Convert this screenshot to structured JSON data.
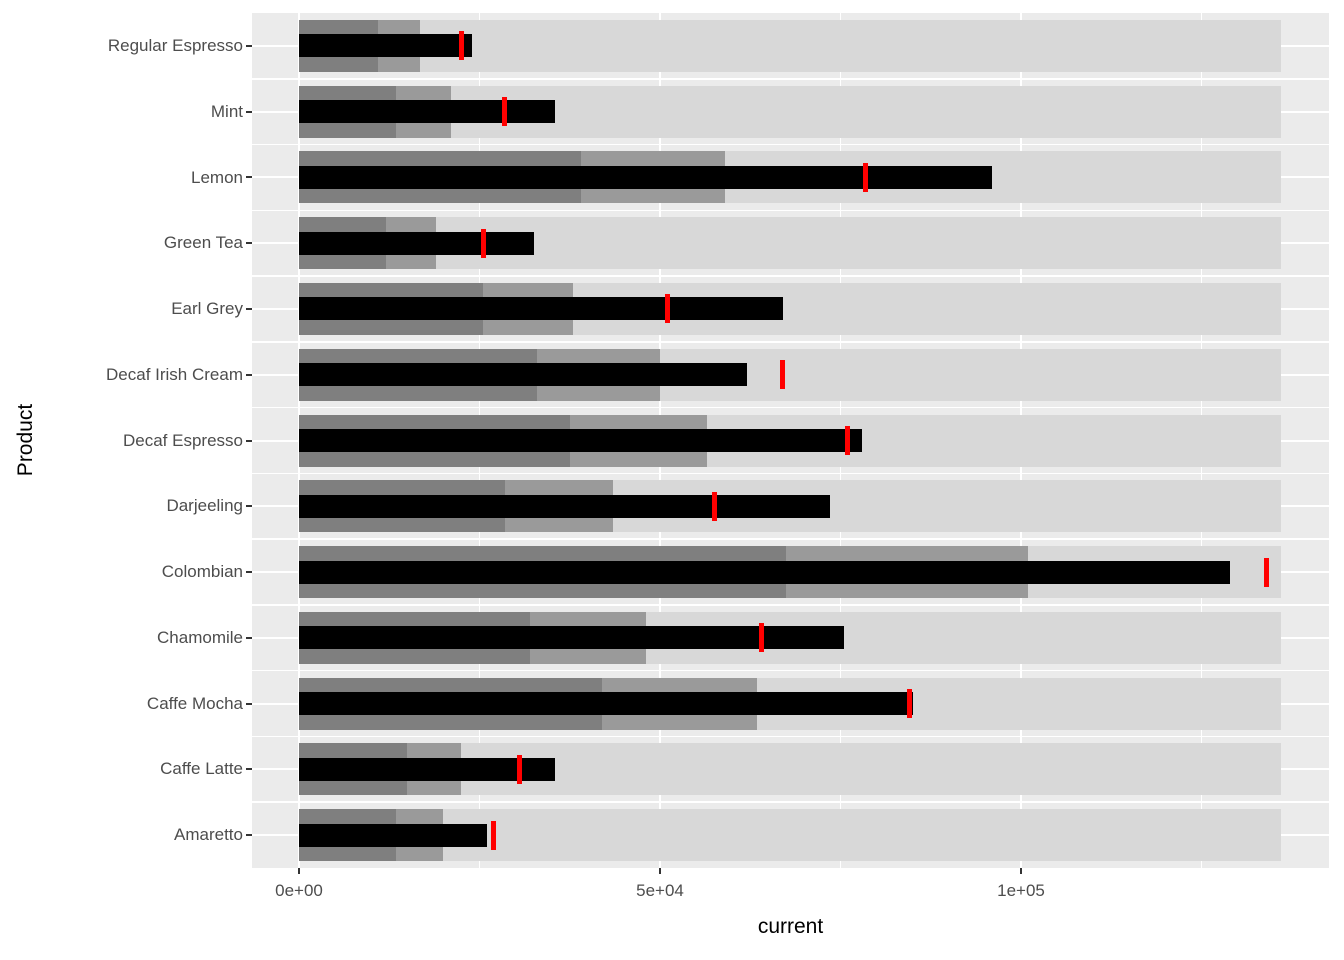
{
  "chart_data": {
    "type": "bar",
    "subtype": "bullet",
    "title": "",
    "xlabel": "current",
    "ylabel": "Product",
    "x_ticks": [
      {
        "value": 0,
        "label": "0e+00"
      },
      {
        "value": 50000,
        "label": "5e+04"
      },
      {
        "value": 100000,
        "label": "1e+05"
      }
    ],
    "x_minor_gridlines": [
      25000,
      75000,
      125000
    ],
    "xlim_data": [
      0,
      136000
    ],
    "grid": true,
    "legend": false,
    "range_max": 136000,
    "products": [
      {
        "name": "Regular Espresso",
        "range1": 11000,
        "range2": 16700,
        "measure": 24000,
        "target": 22500
      },
      {
        "name": "Mint",
        "range1": 13500,
        "range2": 21000,
        "measure": 35500,
        "target": 28500
      },
      {
        "name": "Lemon",
        "range1": 39000,
        "range2": 59000,
        "measure": 96000,
        "target": 78500
      },
      {
        "name": "Green Tea",
        "range1": 12000,
        "range2": 19000,
        "measure": 32500,
        "target": 25500
      },
      {
        "name": "Earl Grey",
        "range1": 25500,
        "range2": 38000,
        "measure": 67000,
        "target": 51000
      },
      {
        "name": "Decaf Irish Cream",
        "range1": 33000,
        "range2": 50000,
        "measure": 62000,
        "target": 67000
      },
      {
        "name": "Decaf Espresso",
        "range1": 37500,
        "range2": 56500,
        "measure": 78000,
        "target": 76000
      },
      {
        "name": "Darjeeling",
        "range1": 28500,
        "range2": 43500,
        "measure": 73500,
        "target": 57500
      },
      {
        "name": "Colombian",
        "range1": 67500,
        "range2": 101000,
        "measure": 129000,
        "target": 134000
      },
      {
        "name": "Chamomile",
        "range1": 32000,
        "range2": 48000,
        "measure": 75500,
        "target": 64000
      },
      {
        "name": "Caffe Mocha",
        "range1": 42000,
        "range2": 63500,
        "measure": 85000,
        "target": 84500
      },
      {
        "name": "Caffe Latte",
        "range1": 15000,
        "range2": 22500,
        "measure": 35500,
        "target": 30500
      },
      {
        "name": "Amaretto",
        "range1": 13500,
        "range2": 20000,
        "measure": 26000,
        "target": 27000
      }
    ],
    "colors": {
      "background": "#ffffff",
      "panel": "#ebebeb",
      "gridline": "#ffffff",
      "range_band_light": "#d8d8d8",
      "range_band_mid": "#9a9a9a",
      "range_band_dark": "#7f7f7f",
      "measure": "#000000",
      "target": "#ff0000",
      "axis_text": "#4d4d4d",
      "axis_title": "#000000",
      "tick_mark": "#333333"
    }
  }
}
